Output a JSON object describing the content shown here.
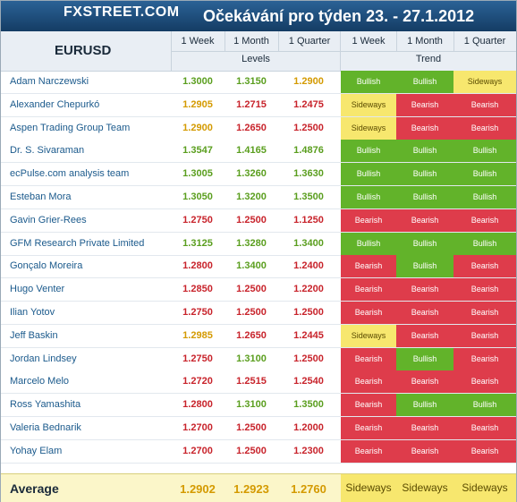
{
  "logo": "FXSTREET.COM",
  "title": "Očekávání pro týden 23. - 27.1.2012",
  "pair": "EURUSD",
  "headers": {
    "levels_cols": [
      "1 Week",
      "1 Month",
      "1 Quarter"
    ],
    "trend_cols": [
      "1 Week",
      "1 Month",
      "1 Quarter"
    ],
    "levels_label": "Levels",
    "trend_label": "Trend"
  },
  "colors": {
    "bullish": "#62b32a",
    "bearish": "#de3c4b",
    "sideways": "#f7e76e",
    "banner": "#1d4e7e"
  },
  "rows": [
    {
      "name": "Adam Narczewski",
      "levels": [
        "1.3000",
        "1.3150",
        "1.2900"
      ],
      "trend": [
        "Bullish",
        "Bullish",
        "Sideways"
      ]
    },
    {
      "name": "Alexander Chepurkó",
      "levels": [
        "1.2905",
        "1.2715",
        "1.2475"
      ],
      "trend": [
        "Sideways",
        "Bearish",
        "Bearish"
      ]
    },
    {
      "name": "Aspen Trading Group Team",
      "levels": [
        "1.2900",
        "1.2650",
        "1.2500"
      ],
      "trend": [
        "Sideways",
        "Bearish",
        "Bearish"
      ]
    },
    {
      "name": "Dr. S. Sivaraman",
      "levels": [
        "1.3547",
        "1.4165",
        "1.4876"
      ],
      "trend": [
        "Bullish",
        "Bullish",
        "Bullish"
      ]
    },
    {
      "name": "ecPulse.com analysis team",
      "levels": [
        "1.3005",
        "1.3260",
        "1.3630"
      ],
      "trend": [
        "Bullish",
        "Bullish",
        "Bullish"
      ]
    },
    {
      "name": "Esteban Mora",
      "levels": [
        "1.3050",
        "1.3200",
        "1.3500"
      ],
      "trend": [
        "Bullish",
        "Bullish",
        "Bullish"
      ]
    },
    {
      "name": "Gavin Grier-Rees",
      "levels": [
        "1.2750",
        "1.2500",
        "1.1250"
      ],
      "trend": [
        "Bearish",
        "Bearish",
        "Bearish"
      ]
    },
    {
      "name": "GFM Research Private Limited",
      "levels": [
        "1.3125",
        "1.3280",
        "1.3400"
      ],
      "trend": [
        "Bullish",
        "Bullish",
        "Bullish"
      ]
    },
    {
      "name": "Gonçalo Moreira",
      "levels": [
        "1.2800",
        "1.3400",
        "1.2400"
      ],
      "trend": [
        "Bearish",
        "Bullish",
        "Bearish"
      ]
    },
    {
      "name": "Hugo Venter",
      "levels": [
        "1.2850",
        "1.2500",
        "1.2200"
      ],
      "trend": [
        "Bearish",
        "Bearish",
        "Bearish"
      ]
    },
    {
      "name": "Ilian Yotov",
      "levels": [
        "1.2750",
        "1.2500",
        "1.2500"
      ],
      "trend": [
        "Bearish",
        "Bearish",
        "Bearish"
      ]
    },
    {
      "name": "Jeff Baskin",
      "levels": [
        "1.2985",
        "1.2650",
        "1.2445"
      ],
      "trend": [
        "Sideways",
        "Bearish",
        "Bearish"
      ]
    },
    {
      "name": "Jordan Lindsey",
      "levels": [
        "1.2750",
        "1.3100",
        "1.2500"
      ],
      "trend": [
        "Bearish",
        "Bullish",
        "Bearish"
      ]
    },
    {
      "name": "Marcelo Melo",
      "levels": [
        "1.2720",
        "1.2515",
        "1.2540"
      ],
      "trend": [
        "Bearish",
        "Bearish",
        "Bearish"
      ]
    },
    {
      "name": "Ross Yamashita",
      "levels": [
        "1.2800",
        "1.3100",
        "1.3500"
      ],
      "trend": [
        "Bearish",
        "Bullish",
        "Bullish"
      ]
    },
    {
      "name": "Valeria Bednarik",
      "levels": [
        "1.2700",
        "1.2500",
        "1.2000"
      ],
      "trend": [
        "Bearish",
        "Bearish",
        "Bearish"
      ]
    },
    {
      "name": "Yohay Elam",
      "levels": [
        "1.2700",
        "1.2500",
        "1.2300"
      ],
      "trend": [
        "Bearish",
        "Bearish",
        "Bearish"
      ]
    }
  ],
  "average": {
    "label": "Average",
    "levels": [
      "1.2902",
      "1.2923",
      "1.2760"
    ],
    "trend": [
      "Sideways",
      "Sideways",
      "Sideways"
    ]
  }
}
